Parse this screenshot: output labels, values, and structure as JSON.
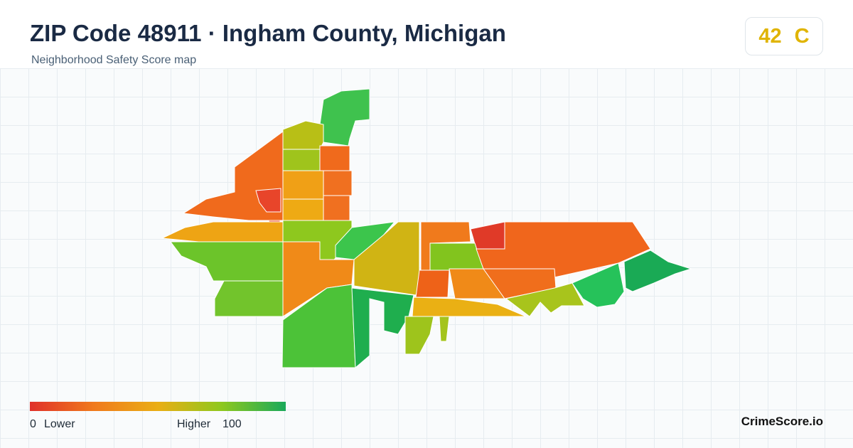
{
  "header": {
    "title": "ZIP Code 48911 · Ingham County, Michigan",
    "subtitle": "Neighborhood Safety Score map"
  },
  "score": {
    "value": 42,
    "grade": "C"
  },
  "legend": {
    "min": 0,
    "min_label": "Lower",
    "max_label": "Higher",
    "max": 100
  },
  "brand": "CrimeScore.io"
}
